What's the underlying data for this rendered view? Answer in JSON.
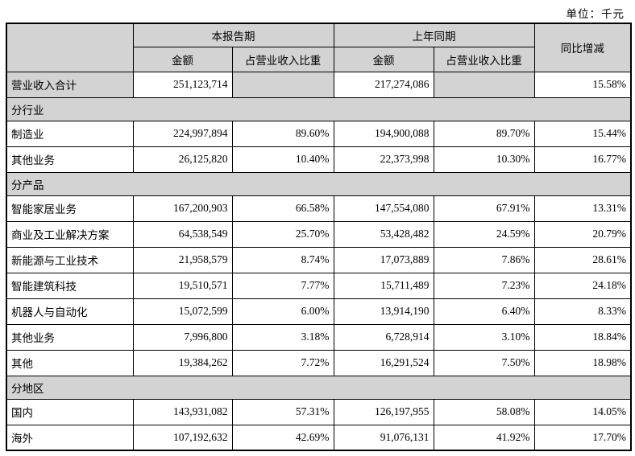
{
  "unit_label": "单位：千元",
  "colors": {
    "shaded_cell": "#d3d3d3",
    "border": "#000000",
    "background": "#ffffff"
  },
  "table": {
    "header": {
      "current_period": "本报告期",
      "prior_period": "上年同期",
      "yoy_change": "同比增减",
      "amount": "金额",
      "pct_of_revenue": "占营业收入比重"
    },
    "rows": [
      {
        "type": "data",
        "label": "营业收入合计",
        "shaded": true,
        "cur_amount": "251,123,714",
        "cur_pct": "",
        "prev_amount": "217,274,086",
        "prev_pct": "",
        "yoy": "15.58%"
      },
      {
        "type": "section",
        "label": "分行业"
      },
      {
        "type": "data",
        "label": "制造业",
        "cur_amount": "224,997,894",
        "cur_pct": "89.60%",
        "prev_amount": "194,900,088",
        "prev_pct": "89.70%",
        "yoy": "15.44%"
      },
      {
        "type": "data",
        "label": "其他业务",
        "cur_amount": "26,125,820",
        "cur_pct": "10.40%",
        "prev_amount": "22,373,998",
        "prev_pct": "10.30%",
        "yoy": "16.77%"
      },
      {
        "type": "section",
        "label": "分产品"
      },
      {
        "type": "data",
        "label": "智能家居业务",
        "bold": true,
        "cur_amount": "167,200,903",
        "cur_pct": "66.58%",
        "prev_amount": "147,554,080",
        "prev_pct": "67.91%",
        "yoy": "13.31%"
      },
      {
        "type": "data",
        "label": "商业及工业解决方案",
        "bold": true,
        "cur_amount": "64,538,549",
        "cur_pct": "25.70%",
        "prev_amount": "53,428,482",
        "prev_pct": "24.59%",
        "yoy": "20.79%"
      },
      {
        "type": "data",
        "label": "新能源与工业技术",
        "indent": true,
        "cur_amount": "21,958,579",
        "cur_pct": "8.74%",
        "prev_amount": "17,073,889",
        "prev_pct": "7.86%",
        "yoy": "28.61%"
      },
      {
        "type": "data",
        "label": "智能建筑科技",
        "indent": true,
        "cur_amount": "19,510,571",
        "cur_pct": "7.77%",
        "prev_amount": "15,711,489",
        "prev_pct": "7.23%",
        "yoy": "24.18%"
      },
      {
        "type": "data",
        "label": "机器人与自动化",
        "indent": true,
        "cur_amount": "15,072,599",
        "cur_pct": "6.00%",
        "prev_amount": "13,914,190",
        "prev_pct": "6.40%",
        "yoy": "8.33%"
      },
      {
        "type": "data",
        "label": "其他业务",
        "indent": true,
        "cur_amount": "7,996,800",
        "cur_pct": "3.18%",
        "prev_amount": "6,728,914",
        "prev_pct": "3.10%",
        "yoy": "18.84%"
      },
      {
        "type": "data",
        "label": "其他",
        "bold": true,
        "cur_amount": "19,384,262",
        "cur_pct": "7.72%",
        "prev_amount": "16,291,524",
        "prev_pct": "7.50%",
        "yoy": "18.98%"
      },
      {
        "type": "section",
        "label": "分地区"
      },
      {
        "type": "data",
        "label": "国内",
        "cur_amount": "143,931,082",
        "cur_pct": "57.31%",
        "prev_amount": "126,197,955",
        "prev_pct": "58.08%",
        "yoy": "14.05%"
      },
      {
        "type": "data",
        "label": "海外",
        "cur_amount": "107,192,632",
        "cur_pct": "42.69%",
        "prev_amount": "91,076,131",
        "prev_pct": "41.92%",
        "yoy": "17.70%"
      }
    ]
  }
}
